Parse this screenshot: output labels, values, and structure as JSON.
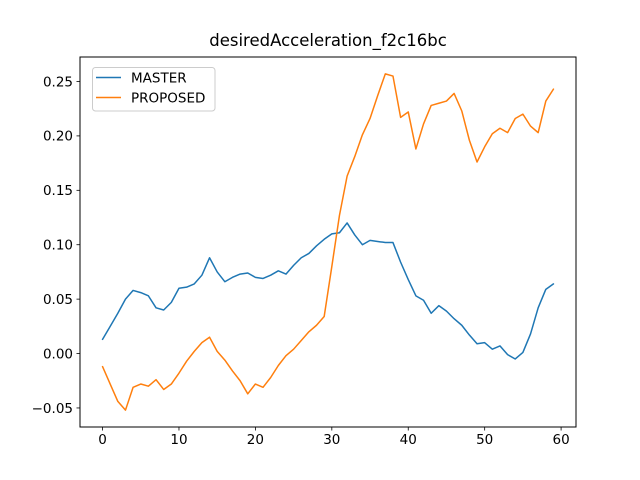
{
  "chart_data": {
    "type": "line",
    "title": "desiredAcceleration_f2c16bc",
    "xlabel": "",
    "ylabel": "",
    "grid": false,
    "legend_position": "upper left",
    "xlim": [
      -2.95,
      61.95
    ],
    "ylim": [
      -0.0675,
      0.2725
    ],
    "xticks": [
      0,
      10,
      20,
      30,
      40,
      50,
      60
    ],
    "xtick_labels": [
      "0",
      "10",
      "20",
      "30",
      "40",
      "50",
      "60"
    ],
    "yticks": [
      -0.05,
      0.0,
      0.05,
      0.1,
      0.15,
      0.2,
      0.25
    ],
    "ytick_labels": [
      "−0.05",
      "0.00",
      "0.05",
      "0.10",
      "0.15",
      "0.20",
      "0.25"
    ],
    "x": [
      0,
      1,
      2,
      3,
      4,
      5,
      6,
      7,
      8,
      9,
      10,
      11,
      12,
      13,
      14,
      15,
      16,
      17,
      18,
      19,
      20,
      21,
      22,
      23,
      24,
      25,
      26,
      27,
      28,
      29,
      30,
      31,
      32,
      33,
      34,
      35,
      36,
      37,
      38,
      39,
      40,
      41,
      42,
      43,
      44,
      45,
      46,
      47,
      48,
      49,
      50,
      51,
      52,
      53,
      54,
      55,
      56,
      57,
      58,
      59
    ],
    "series": [
      {
        "name": "MASTER",
        "color": "#1f77b4",
        "values": [
          0.013,
          0.025,
          0.037,
          0.05,
          0.058,
          0.056,
          0.053,
          0.042,
          0.04,
          0.047,
          0.06,
          0.061,
          0.064,
          0.072,
          0.088,
          0.075,
          0.066,
          0.07,
          0.073,
          0.074,
          0.07,
          0.069,
          0.072,
          0.076,
          0.073,
          0.081,
          0.088,
          0.092,
          0.099,
          0.105,
          0.11,
          0.111,
          0.12,
          0.109,
          0.1,
          0.104,
          0.103,
          0.102,
          0.102,
          0.084,
          0.068,
          0.053,
          0.049,
          0.037,
          0.044,
          0.039,
          0.032,
          0.026,
          0.017,
          0.009,
          0.01,
          0.004,
          0.007,
          -0.001,
          -0.005,
          0.001,
          0.018,
          0.042,
          0.059,
          0.064
        ]
      },
      {
        "name": "PROPOSED",
        "color": "#ff7f0e",
        "values": [
          -0.012,
          -0.028,
          -0.044,
          -0.052,
          -0.031,
          -0.028,
          -0.03,
          -0.024,
          -0.033,
          -0.028,
          -0.018,
          -0.007,
          0.002,
          0.01,
          0.015,
          0.002,
          -0.006,
          -0.016,
          -0.025,
          -0.037,
          -0.028,
          -0.031,
          -0.022,
          -0.011,
          -0.002,
          0.004,
          0.012,
          0.02,
          0.026,
          0.034,
          0.08,
          0.127,
          0.163,
          0.181,
          0.201,
          0.216,
          0.237,
          0.257,
          0.255,
          0.217,
          0.222,
          0.188,
          0.211,
          0.228,
          0.23,
          0.232,
          0.239,
          0.223,
          0.196,
          0.176,
          0.19,
          0.202,
          0.207,
          0.203,
          0.216,
          0.22,
          0.209,
          0.203,
          0.232,
          0.243
        ]
      }
    ],
    "style": {
      "line_width": 1.5,
      "spine_color": "#000000",
      "tick_color": "#000000",
      "text_color": "#000000",
      "legend_border_color": "#cccccc",
      "background": "#ffffff"
    }
  }
}
